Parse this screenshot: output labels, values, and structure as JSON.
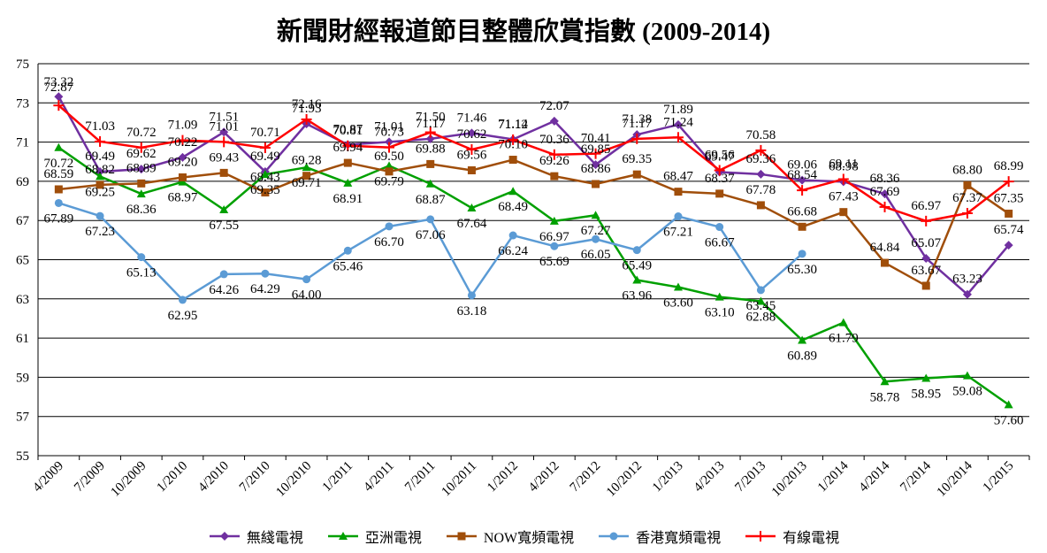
{
  "chart_data": {
    "type": "line",
    "title": "新聞財經報道節目整體欣賞指數 (2009-2014)",
    "xlabel": "",
    "ylabel": "",
    "ylim": [
      55,
      75
    ],
    "yticks": [
      55,
      57,
      59,
      61,
      63,
      65,
      67,
      69,
      71,
      73,
      75
    ],
    "grid": true,
    "legend_position": "bottom",
    "categories": [
      "4/2009",
      "7/2009",
      "10/2009",
      "1/2010",
      "4/2010",
      "7/2010",
      "10/2010",
      "1/2011",
      "4/2011",
      "7/2011",
      "10/2011",
      "1/2012",
      "4/2012",
      "7/2012",
      "10/2012",
      "1/2013",
      "4/2013",
      "7/2013",
      "10/2013",
      "1/2014",
      "4/2014",
      "7/2014",
      "10/2014",
      "1/2015"
    ],
    "series": [
      {
        "name": "無綫電視",
        "color": "#7030A0",
        "marker": "diamond",
        "values": [
          73.32,
          69.49,
          69.62,
          70.22,
          71.51,
          69.49,
          71.93,
          70.87,
          71.01,
          71.17,
          71.46,
          71.14,
          72.07,
          69.85,
          71.38,
          71.89,
          69.47,
          69.36,
          69.06,
          68.98,
          68.36,
          65.07,
          63.23,
          65.74
        ],
        "labels": [
          "73.32",
          "69.49",
          "69.62",
          "70.22",
          "71.51",
          "69.49",
          "71.93",
          "70.87",
          "71.01",
          "71.17",
          "71.46",
          "71.14",
          "72.07",
          "69.85",
          "71.38",
          "71.89",
          "69.47",
          "69.36",
          "69.06",
          "68.98",
          "68.36",
          "65.07",
          "63.23",
          "65.74"
        ]
      },
      {
        "name": "亞洲電視",
        "color": "#00A000",
        "marker": "triangle",
        "values": [
          70.72,
          69.25,
          68.36,
          68.97,
          67.55,
          69.35,
          69.71,
          68.91,
          69.79,
          68.87,
          67.64,
          68.49,
          66.97,
          67.27,
          63.96,
          63.6,
          63.1,
          62.88,
          60.89,
          61.79,
          58.78,
          58.95,
          59.08,
          57.6
        ],
        "labels": [
          "70.72",
          "69.25",
          "68.36",
          "68.97",
          "67.55",
          "69.35",
          "69.71",
          "68.91",
          "69.79",
          "68.87",
          "67.64",
          "68.49",
          "66.97",
          "67.27",
          "63.96",
          "63.60",
          "63.10",
          "62.88",
          "60.89",
          "61.79",
          "58.78",
          "58.95",
          "59.08",
          "57.60"
        ]
      },
      {
        "name": "NOW寬頻電視",
        "color": "#A04E0A",
        "marker": "square",
        "values": [
          68.59,
          68.82,
          68.89,
          69.2,
          69.43,
          68.43,
          69.28,
          69.94,
          69.5,
          69.88,
          69.56,
          70.1,
          69.26,
          68.86,
          69.35,
          68.47,
          68.37,
          67.78,
          66.68,
          67.43,
          64.84,
          63.67,
          68.8,
          67.35
        ],
        "labels": [
          "68.59",
          "68.82",
          "68.89",
          "69.20",
          "69.43",
          "68.43",
          "69.28",
          "69.94",
          "69.50",
          "69.88",
          "69.56",
          "70.10",
          "69.26",
          "68.86",
          "69.35",
          "68.47",
          "68.37",
          "67.78",
          "66.68",
          "67.43",
          "64.84",
          "63.67",
          "68.80",
          "67.35"
        ]
      },
      {
        "name": "香港寬頻電視",
        "color": "#5B9BD5",
        "marker": "circle",
        "values": [
          67.89,
          67.23,
          65.13,
          62.95,
          64.26,
          64.29,
          64.0,
          65.46,
          66.7,
          67.06,
          63.18,
          66.24,
          65.69,
          66.05,
          65.49,
          67.21,
          66.67,
          63.45,
          65.3,
          null,
          null,
          null,
          null,
          null
        ],
        "labels": [
          "67.89",
          "67.23",
          "65.13",
          "62.95",
          "64.26",
          "64.29",
          "64.00",
          "65.46",
          "66.70",
          "67.06",
          "63.18",
          "66.24",
          "65.69",
          "66.05",
          "65.49",
          "67.21",
          "66.67",
          "63.45",
          "65.30",
          null,
          null,
          null,
          null,
          null
        ]
      },
      {
        "name": "有線電視",
        "color": "#FF0000",
        "marker": "plus",
        "values": [
          72.87,
          71.03,
          70.72,
          71.09,
          71.01,
          70.71,
          72.16,
          70.81,
          70.73,
          71.5,
          70.62,
          71.12,
          70.36,
          70.41,
          71.17,
          71.24,
          69.56,
          70.58,
          68.54,
          69.11,
          67.69,
          66.97,
          67.37,
          68.99
        ],
        "labels": [
          "72.87",
          "71.03",
          "70.72",
          "71.09",
          "71.01",
          "70.71",
          "72.16",
          "70.81",
          "70.73",
          "71.50",
          "70.62",
          "71.12",
          "70.36",
          "70.41",
          "71.17",
          "71.24",
          "69.56",
          "70.58",
          "68.54",
          "69.11",
          "67.69",
          "66.97",
          "67.37",
          "68.99"
        ]
      }
    ]
  }
}
